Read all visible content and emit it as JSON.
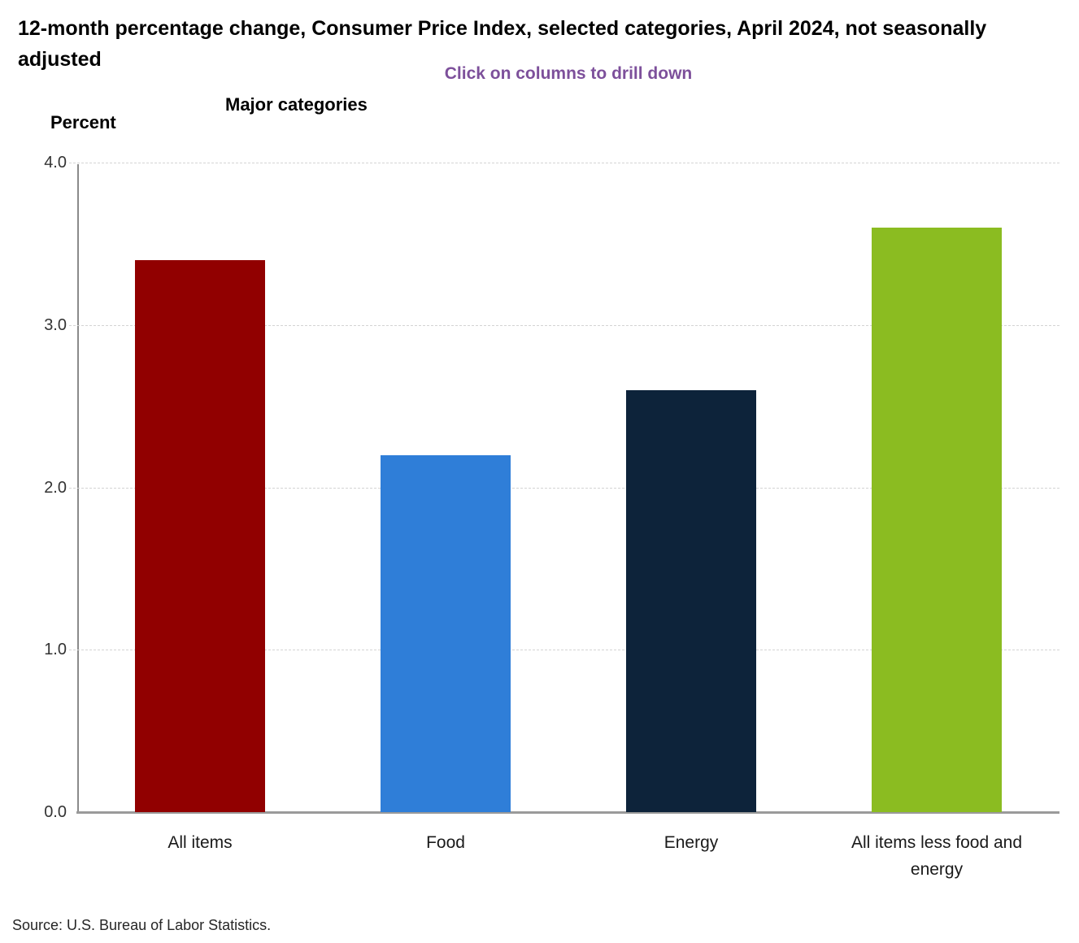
{
  "header": {
    "title": "12-month percentage change, Consumer Price Index, selected categories, April 2024, not seasonally adjusted",
    "subtitle": "Click on columns to drill down",
    "x_axis_title": "Major categories",
    "y_axis_title": "Percent"
  },
  "footer": {
    "source": "Source: U.S. Bureau of Labor Statistics."
  },
  "colors": {
    "subtitle_purple": "#7D509B",
    "axis_line": "#8a8a8a",
    "gridline": "#d4d4d4",
    "tick_label": "#333333"
  },
  "chart_data": {
    "type": "bar",
    "title": "12-month percentage change, Consumer Price Index, selected categories, April 2024, not seasonally adjusted",
    "subtitle": "Click on columns to drill down",
    "categories": [
      "All items",
      "Food",
      "Energy",
      "All items less food and energy"
    ],
    "values": [
      3.4,
      2.2,
      2.6,
      3.6
    ],
    "bar_colors": [
      "#910000",
      "#2F7ED8",
      "#0D233A",
      "#8BBC21"
    ],
    "xlabel": "Major categories",
    "ylabel": "Percent",
    "ylim": [
      0,
      4.0
    ],
    "yticks": [
      0.0,
      1.0,
      2.0,
      3.0,
      4.0
    ],
    "ytick_format": "one_decimal",
    "grid": "horizontal-dashed",
    "legend": "none",
    "interaction_hint": "columns are clickable to drill down"
  }
}
